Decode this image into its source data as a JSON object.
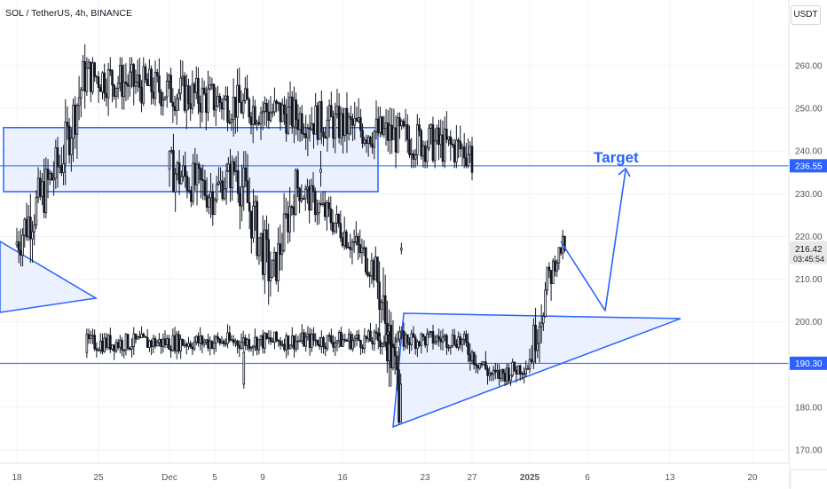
{
  "header": {
    "title": "SOL / TetherUS, 4h, BINANCE",
    "unit_button": "USDT"
  },
  "colors": {
    "up": "#131722",
    "down": "#131722",
    "accent": "#2962ff",
    "zone_fill": "#e9efff",
    "grid": "#f0f3fa"
  },
  "chart_data": {
    "type": "candlestick",
    "title": "SOL / TetherUS, 4h, BINANCE",
    "ylim": [
      165,
      270
    ],
    "y_ticks": [
      "170.00",
      "180.00",
      "190.00",
      "200.00",
      "210.00",
      "220.00",
      "230.00",
      "240.00",
      "250.00",
      "260.00"
    ],
    "x_ticks": [
      "18",
      "25",
      "Dec",
      "5",
      "9",
      "16",
      "23",
      "27",
      "2025",
      "6",
      "13",
      "20"
    ],
    "last_price": "216.42",
    "countdown": "03:45:54",
    "levels": [
      {
        "price": 236.55,
        "label": "236.55"
      },
      {
        "price": 190.3,
        "label": "190.30"
      }
    ],
    "zone": {
      "top": 245.5,
      "bottom": 230.5
    },
    "annotation": "Target",
    "series_segments": [
      {
        "from": "18",
        "to": "22",
        "open": 218,
        "close": 238,
        "high": 246,
        "low": 213
      },
      {
        "from": "22",
        "to": "24",
        "open": 238,
        "close": 258,
        "high": 265,
        "low": 232
      },
      {
        "from": "24",
        "to": "27",
        "open": 258,
        "close": 240,
        "high": 262,
        "low": 236
      },
      {
        "from": "27",
        "to": "Dec",
        "open": 240,
        "close": 236,
        "high": 248,
        "low": 222
      },
      {
        "from": "Dec",
        "to": "5",
        "open": 236,
        "close": 230,
        "high": 245,
        "low": 217
      },
      {
        "from": "5",
        "to": "7",
        "open": 230,
        "close": 236,
        "high": 248,
        "low": 226
      },
      {
        "from": "7",
        "to": "10",
        "open": 236,
        "close": 210,
        "high": 240,
        "low": 204
      },
      {
        "from": "10",
        "to": "12",
        "open": 210,
        "close": 232,
        "high": 236,
        "low": 207
      },
      {
        "from": "12",
        "to": "16",
        "open": 232,
        "close": 222,
        "high": 236,
        "low": 216
      },
      {
        "from": "16",
        "to": "19",
        "open": 222,
        "close": 212,
        "high": 229,
        "low": 208
      },
      {
        "from": "19",
        "to": "21",
        "open": 212,
        "close": 183,
        "high": 215,
        "low": 176
      },
      {
        "from": "21",
        "to": "24",
        "open": 183,
        "close": 195,
        "high": 200,
        "low": 178
      },
      {
        "from": "24",
        "to": "26",
        "open": 195,
        "close": 196,
        "high": 202,
        "low": 190
      },
      {
        "from": "26",
        "to": "29",
        "open": 196,
        "close": 187,
        "high": 198,
        "low": 183
      },
      {
        "from": "29",
        "to": "2025",
        "open": 187,
        "close": 190,
        "high": 197,
        "low": 185
      },
      {
        "from": "2025",
        "to": "3",
        "open": 190,
        "close": 212,
        "high": 214,
        "low": 188
      },
      {
        "from": "3",
        "to": "4",
        "open": 212,
        "close": 218,
        "high": 222,
        "low": 210
      },
      {
        "from": "4",
        "to": "7",
        "open": 218,
        "close": 216.42,
        "high": 220,
        "low": 212
      }
    ]
  }
}
